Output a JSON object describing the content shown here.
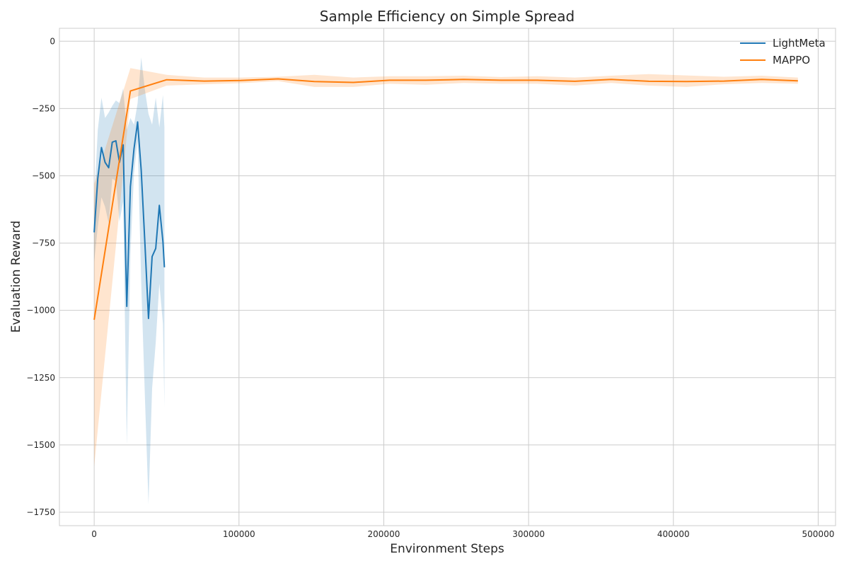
{
  "chart_data": {
    "type": "line",
    "title": "Sample Efficiency on Simple Spread",
    "xlabel": "Environment Steps",
    "ylabel": "Evaluation Reward",
    "xlim": [
      -24000,
      512000
    ],
    "ylim": [
      -1800,
      48
    ],
    "x_ticks": [
      0,
      100000,
      200000,
      300000,
      400000,
      500000
    ],
    "y_ticks": [
      0,
      -250,
      -500,
      -750,
      -1000,
      -1250,
      -1500,
      -1750
    ],
    "x_tick_labels": [
      "0",
      "100000",
      "200000",
      "300000",
      "400000",
      "500000"
    ],
    "y_tick_labels": [
      "0",
      "−250",
      "−500",
      "−750",
      "−1000",
      "−1250",
      "−1500",
      "−1750"
    ],
    "grid": true,
    "legend_position": "top-right",
    "series": [
      {
        "name": "LightMeta",
        "color": "#1f77b4",
        "band_color": "#1f77b4",
        "x": [
          0,
          2500,
          5000,
          7500,
          10000,
          12500,
          15000,
          17500,
          20000,
          22500,
          25000,
          27500,
          30000,
          32500,
          35000,
          37500,
          40000,
          42500,
          45000,
          47500,
          48500
        ],
        "y": [
          -710,
          -510,
          -395,
          -450,
          -470,
          -375,
          -370,
          -450,
          -385,
          -985,
          -540,
          -400,
          -300,
          -480,
          -750,
          -1030,
          -800,
          -770,
          -610,
          -745,
          -840
        ],
        "upper": [
          -600,
          -330,
          -210,
          -285,
          -265,
          -240,
          -220,
          -230,
          -175,
          -330,
          -285,
          -310,
          -230,
          -60,
          -180,
          -270,
          -310,
          -210,
          -320,
          -200,
          -320
        ],
        "lower": [
          -820,
          -690,
          -580,
          -615,
          -675,
          -510,
          -520,
          -670,
          -595,
          -1500,
          -795,
          -490,
          -370,
          -900,
          -1320,
          -1720,
          -1290,
          -1120,
          -900,
          -1050,
          -1360
        ]
      },
      {
        "name": "MAPPO",
        "color": "#ff7f0e",
        "band_color": "#ff7f0e",
        "x": [
          0,
          25000,
          50000,
          76000,
          101000,
          127000,
          152000,
          179000,
          204000,
          229000,
          255000,
          281000,
          306000,
          332000,
          357000,
          383000,
          409000,
          435000,
          461000,
          486000
        ],
        "y": [
          -1035,
          -185,
          -143,
          -148,
          -146,
          -140,
          -150,
          -153,
          -145,
          -145,
          -142,
          -145,
          -145,
          -149,
          -142,
          -149,
          -150,
          -148,
          -142,
          -147
        ],
        "upper": [
          -530,
          -100,
          -125,
          -135,
          -135,
          -132,
          -125,
          -135,
          -130,
          -130,
          -128,
          -133,
          -130,
          -135,
          -128,
          -122,
          -127,
          -132,
          -128,
          -135
        ],
        "lower": [
          -1580,
          -215,
          -165,
          -160,
          -156,
          -148,
          -170,
          -170,
          -158,
          -162,
          -155,
          -158,
          -158,
          -165,
          -155,
          -165,
          -170,
          -160,
          -155,
          -158
        ]
      }
    ]
  }
}
